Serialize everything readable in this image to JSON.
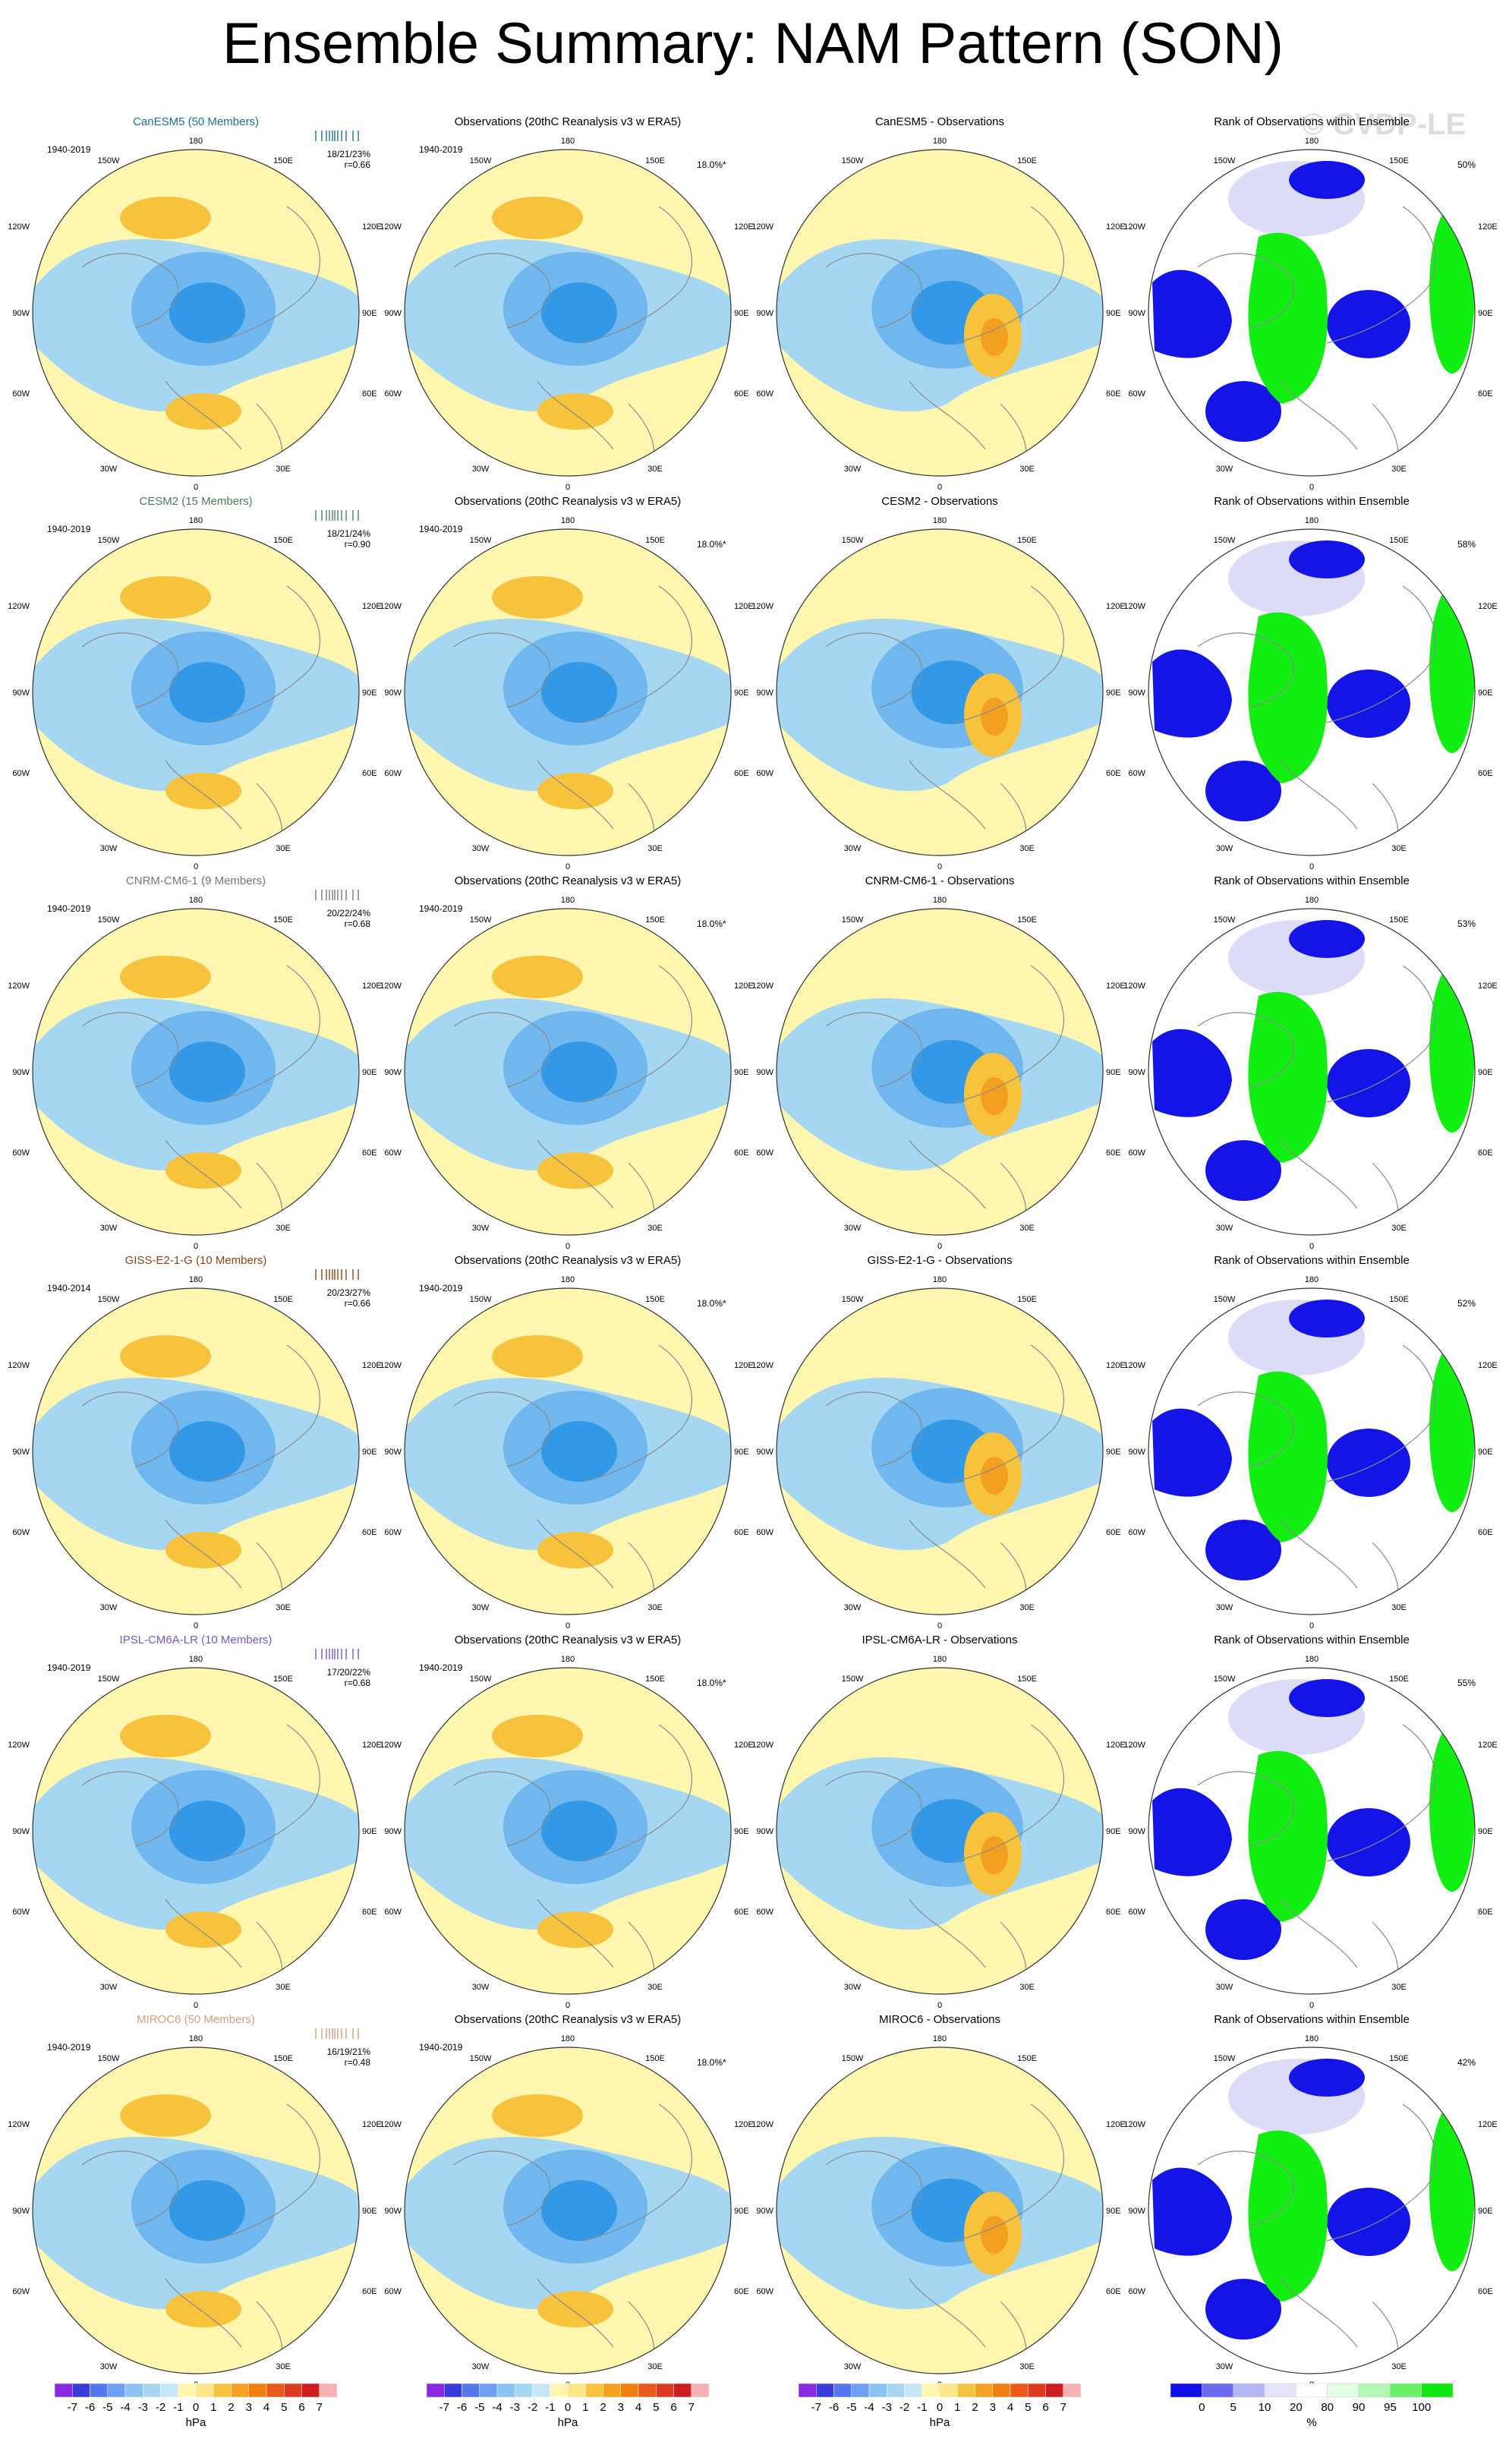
{
  "title": "Ensemble Summary: NAM Pattern (SON)",
  "watermark": "© CVDP-LE",
  "obs_title": "Observations (20thC Reanalysis v3 w ERA5)",
  "rank_title": "Rank of Observations within Ensemble",
  "lon_labels": {
    "top": "180",
    "tl": "150W",
    "tr": "150E",
    "ul": "120W",
    "ur": "120E",
    "l": "90W",
    "r": "90E",
    "ll": "60W",
    "lr": "60E",
    "bl": "30W",
    "br": "30E",
    "bottom": "0"
  },
  "rows": [
    {
      "model": "CanESM5 (50 Members)",
      "color": "#1f6f8f",
      "period": "1940-2019",
      "stats": "18/21/23%",
      "r": "r=0.66",
      "obs_period": "1940-2019",
      "obs_pct": "18.0%*",
      "diff_title": "CanESM5 - Observations",
      "rank_pct": "50%"
    },
    {
      "model": "CESM2 (15 Members)",
      "color": "#4a7f5e",
      "period": "1940-2019",
      "stats": "18/21/24%",
      "r": "r=0.90",
      "obs_period": "1940-2019",
      "obs_pct": "18.0%*",
      "diff_title": "CESM2 - Observations",
      "rank_pct": "58%"
    },
    {
      "model": "CNRM-CM6-1 (9 Members)",
      "color": "#777777",
      "period": "1940-2019",
      "stats": "20/22/24%",
      "r": "r=0.68",
      "obs_period": "1940-2019",
      "obs_pct": "18.0%*",
      "diff_title": "CNRM-CM6-1 - Observations",
      "rank_pct": "53%"
    },
    {
      "model": "GISS-E2-1-G (10 Members)",
      "color": "#8b4513",
      "period": "1940-2014",
      "stats": "20/23/27%",
      "r": "r=0.66",
      "obs_period": "1940-2019",
      "obs_pct": "18.0%*",
      "diff_title": "GISS-E2-1-G - Observations",
      "rank_pct": "52%"
    },
    {
      "model": "IPSL-CM6A-LR (10 Members)",
      "color": "#7b55c8",
      "period": "1940-2019",
      "stats": "17/20/22%",
      "r": "r=0.68",
      "obs_period": "1940-2019",
      "obs_pct": "18.0%*",
      "diff_title": "IPSL-CM6A-LR - Observations",
      "rank_pct": "55%"
    },
    {
      "model": "MIROC6 (50 Members)",
      "color": "#d2a07a",
      "period": "1940-2019",
      "stats": "16/19/21%",
      "r": "r=0.48",
      "obs_period": "1940-2019",
      "obs_pct": "18.0%*",
      "diff_title": "MIROC6 - Observations",
      "rank_pct": "42%"
    }
  ],
  "colorbar_hpa": {
    "colors": [
      "#8a2be2",
      "#3b3bd9",
      "#5577ee",
      "#6f9ff2",
      "#8cc3f2",
      "#a6d7f2",
      "#c6e6f6",
      "#fff7b0",
      "#fde58a",
      "#f7c23c",
      "#f6a020",
      "#f28010",
      "#e85b1a",
      "#de3a20",
      "#cc1e1e",
      "#f4b2b2"
    ],
    "labels": [
      "-7",
      "-6",
      "-5",
      "-4",
      "-3",
      "-2",
      "-1",
      "0",
      "1",
      "2",
      "3",
      "4",
      "5",
      "6",
      "7"
    ],
    "unit": "hPa"
  },
  "colorbar_rank": {
    "colors": [
      "#1010e6",
      "#6b6bf0",
      "#b4b4f7",
      "#e4e4fb",
      "#ffffff",
      "#e4fbe4",
      "#b4f7b4",
      "#6bf06b",
      "#10e610"
    ],
    "labels": [
      "0",
      "5",
      "10",
      "20",
      "80",
      "90",
      "95",
      "100"
    ],
    "unit": "%"
  },
  "palette": {
    "yellow": "#fff7b0",
    "orange": "#f7c23c",
    "orange_deep": "#f3a020",
    "lblue": "#a6d7f2",
    "mblue": "#6fb7ee",
    "dblue": "#3399e6",
    "rank_blue": "#1414e6",
    "rank_green": "#12ee12",
    "rank_pale": "#dcdcf8"
  }
}
